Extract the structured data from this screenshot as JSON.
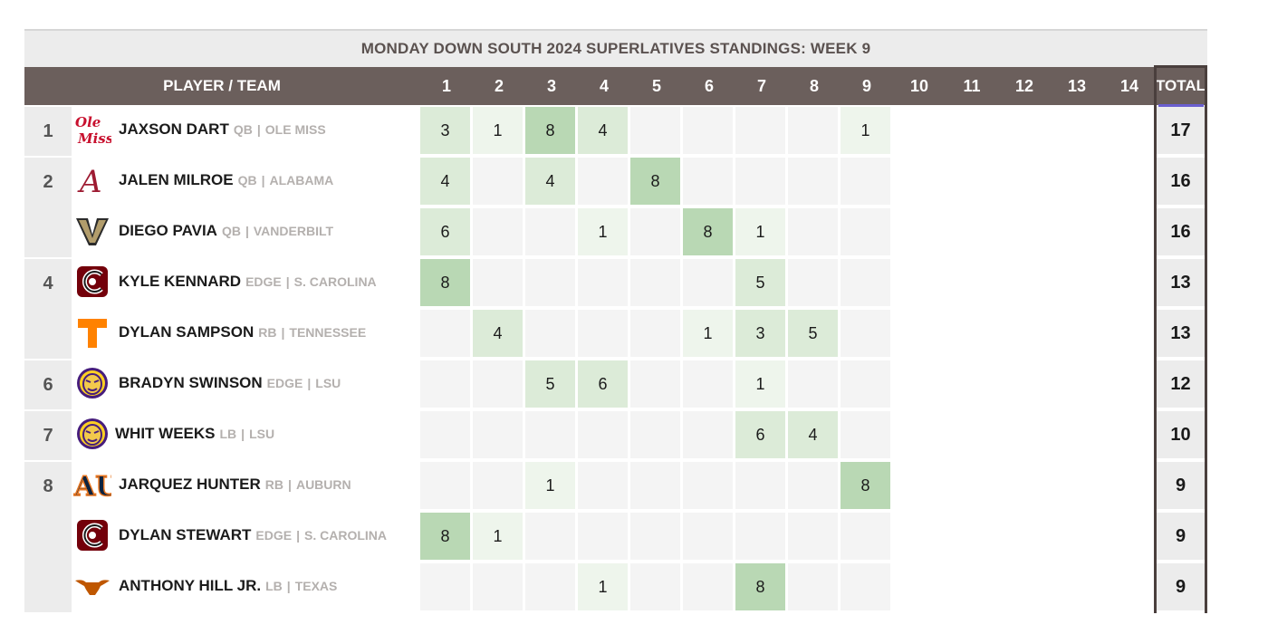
{
  "title": "MONDAY DOWN SOUTH 2024 SUPERLATIVES STANDINGS: WEEK 9",
  "header": {
    "player_label": "PLAYER / TEAM",
    "weeks": [
      "1",
      "2",
      "3",
      "4",
      "5",
      "6",
      "7",
      "8",
      "9",
      "10",
      "11",
      "12",
      "13",
      "14"
    ],
    "total_label": "TOTAL"
  },
  "colors": {
    "header_bg": "#6b5f5c",
    "title_text": "#5b5250",
    "cell_empty": "#f4f4f4",
    "cell_low": "#eef5ec",
    "cell_mid": "#dcebd8",
    "cell_high": "#b9d8b4",
    "total_border": "#4a3f3d",
    "total_accent": "#6a5fcf"
  },
  "rows": [
    {
      "rank": "1",
      "logo": "ole-miss-logo",
      "name": "JAXSON DART",
      "position": "QB",
      "team": "OLE MISS",
      "weeks": [
        3,
        1,
        8,
        4,
        null,
        null,
        null,
        null,
        1
      ],
      "total": "17"
    },
    {
      "rank": "2",
      "logo": "alabama-logo",
      "name": "JALEN MILROE",
      "position": "QB",
      "team": "ALABAMA",
      "weeks": [
        4,
        null,
        4,
        null,
        8,
        null,
        null,
        null,
        null
      ],
      "total": "16"
    },
    {
      "rank": "",
      "logo": "vanderbilt-logo",
      "name": "DIEGO PAVIA",
      "position": "QB",
      "team": "VANDERBILT",
      "weeks": [
        6,
        null,
        null,
        1,
        null,
        8,
        1,
        null,
        null
      ],
      "total": "16"
    },
    {
      "rank": "4",
      "logo": "south-carolina-logo",
      "name": "KYLE KENNARD",
      "position": "EDGE",
      "team": "S. CAROLINA",
      "weeks": [
        8,
        null,
        null,
        null,
        null,
        null,
        5,
        null,
        null
      ],
      "total": "13"
    },
    {
      "rank": "",
      "logo": "tennessee-logo",
      "name": "DYLAN SAMPSON",
      "position": "RB",
      "team": "TENNESSEE",
      "weeks": [
        null,
        4,
        null,
        null,
        null,
        1,
        3,
        5,
        null
      ],
      "total": "13"
    },
    {
      "rank": "6",
      "logo": "lsu-logo",
      "name": "BRADYN SWINSON",
      "position": "EDGE",
      "team": "LSU",
      "weeks": [
        null,
        null,
        5,
        6,
        null,
        null,
        1,
        null,
        null
      ],
      "total": "12"
    },
    {
      "rank": "7",
      "logo": "lsu-logo",
      "name": "WHIT WEEKS",
      "position": "LB",
      "team": "LSU",
      "weeks": [
        null,
        null,
        null,
        null,
        null,
        null,
        6,
        4,
        null
      ],
      "total": "10"
    },
    {
      "rank": "8",
      "logo": "auburn-logo",
      "name": "JARQUEZ HUNTER",
      "position": "RB",
      "team": "AUBURN",
      "weeks": [
        null,
        null,
        1,
        null,
        null,
        null,
        null,
        null,
        8
      ],
      "total": "9"
    },
    {
      "rank": "",
      "logo": "south-carolina-logo",
      "name": "DYLAN STEWART",
      "position": "EDGE",
      "team": "S. CAROLINA",
      "weeks": [
        8,
        1,
        null,
        null,
        null,
        null,
        null,
        null,
        null
      ],
      "total": "9"
    },
    {
      "rank": "",
      "logo": "texas-logo",
      "name": "ANTHONY HILL JR.",
      "position": "LB",
      "team": "TEXAS",
      "weeks": [
        null,
        null,
        null,
        1,
        null,
        null,
        8,
        null,
        null
      ],
      "total": "9"
    }
  ]
}
